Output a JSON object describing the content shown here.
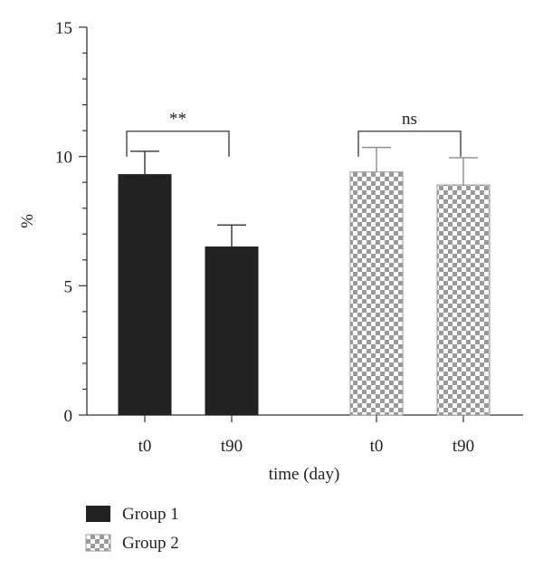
{
  "chart_data": {
    "type": "bar",
    "xlabel": "time (day)",
    "ylabel": "%",
    "ylim": [
      0,
      15
    ],
    "yticks": [
      0,
      5,
      10,
      15
    ],
    "y_minor_step": 1,
    "grid": false,
    "legend_position": "bottom-left",
    "series": [
      {
        "name": "Group 1",
        "pattern": "solid",
        "color": "#222222",
        "categories": [
          "t0",
          "t90"
        ],
        "values": [
          9.3,
          6.5
        ],
        "errors": [
          0.9,
          0.85
        ]
      },
      {
        "name": "Group 2",
        "pattern": "checkerboard",
        "color": "#9a9a9a",
        "categories": [
          "t0",
          "t90"
        ],
        "values": [
          9.4,
          8.9
        ],
        "errors": [
          0.95,
          1.05
        ]
      }
    ],
    "annotations": [
      {
        "series": 0,
        "label": "**",
        "y": 11.5
      },
      {
        "series": 1,
        "label": "ns",
        "y": 11.5
      }
    ]
  }
}
